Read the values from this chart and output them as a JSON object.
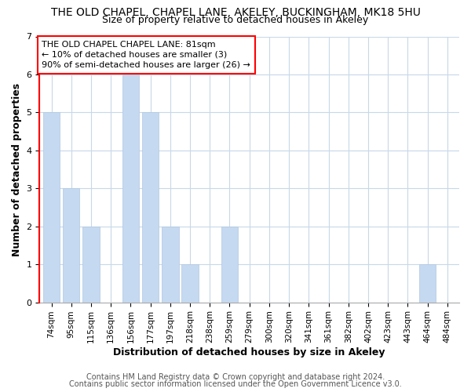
{
  "title": "THE OLD CHAPEL, CHAPEL LANE, AKELEY, BUCKINGHAM, MK18 5HU",
  "subtitle": "Size of property relative to detached houses in Akeley",
  "xlabel": "Distribution of detached houses by size in Akeley",
  "ylabel": "Number of detached properties",
  "footer_line1": "Contains HM Land Registry data © Crown copyright and database right 2024.",
  "footer_line2": "Contains public sector information licensed under the Open Government Licence v3.0.",
  "bin_labels": [
    "74sqm",
    "95sqm",
    "115sqm",
    "136sqm",
    "156sqm",
    "177sqm",
    "197sqm",
    "218sqm",
    "238sqm",
    "259sqm",
    "279sqm",
    "300sqm",
    "320sqm",
    "341sqm",
    "361sqm",
    "382sqm",
    "402sqm",
    "423sqm",
    "443sqm",
    "464sqm",
    "484sqm"
  ],
  "bar_values": [
    5,
    3,
    2,
    0,
    6,
    5,
    2,
    1,
    0,
    2,
    0,
    0,
    0,
    0,
    0,
    0,
    0,
    0,
    0,
    1,
    0
  ],
  "bar_color": "#c5d9f1",
  "ylim": [
    0,
    7
  ],
  "yticks": [
    0,
    1,
    2,
    3,
    4,
    5,
    6,
    7
  ],
  "annotation_line1": "THE OLD CHAPEL CHAPEL LANE: 81sqm",
  "annotation_line2": "← 10% of detached houses are smaller (3)",
  "annotation_line3": "90% of semi-detached houses are larger (26) →",
  "background_color": "#ffffff",
  "grid_color": "#c8d8e8",
  "title_fontsize": 10,
  "subtitle_fontsize": 9,
  "axis_label_fontsize": 9,
  "tick_fontsize": 7.5,
  "annotation_fontsize": 8,
  "footer_fontsize": 7
}
